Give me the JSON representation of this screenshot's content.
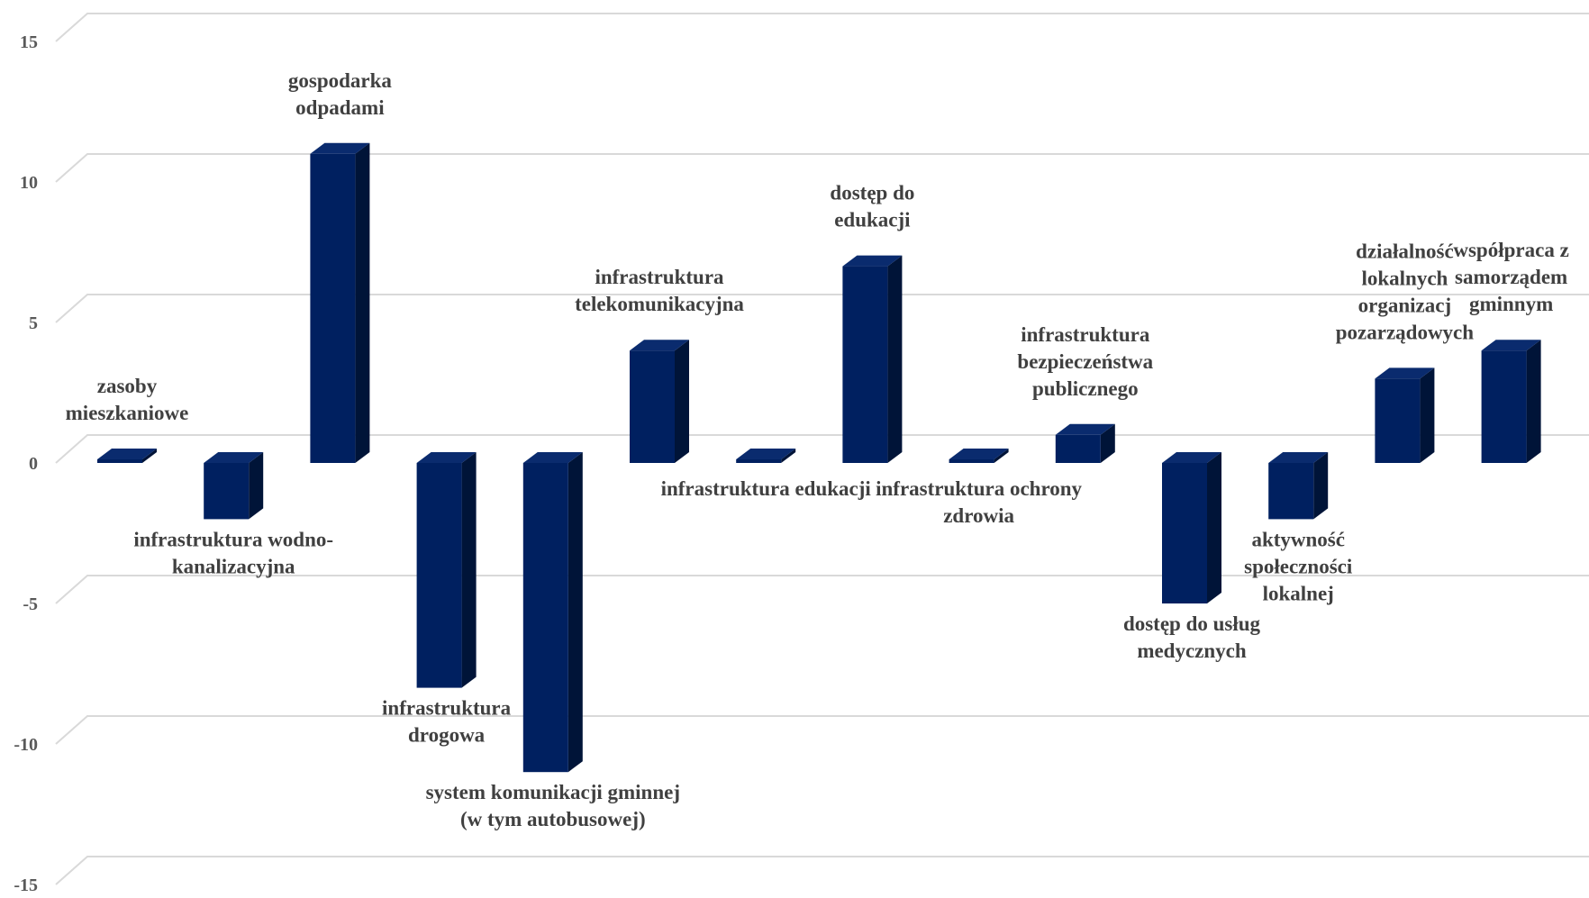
{
  "chart_data": {
    "type": "bar",
    "title": "",
    "xlabel": "",
    "ylabel": "",
    "ylim": [
      -15,
      15
    ],
    "yticks": [
      15,
      10,
      5,
      0,
      -5,
      -10,
      -15
    ],
    "grid": true,
    "bar_color": "#002060",
    "bar_side_color": "#001438",
    "bar_top_color": "#0a2b6e",
    "categories": [
      [
        "zasoby",
        "mieszkaniowe"
      ],
      [
        "infrastruktura wodno-",
        "kanalizacyjna"
      ],
      [
        "gospodarka",
        "odpadami"
      ],
      [
        "infrastruktura",
        "drogowa"
      ],
      [
        "system komunikacji gminnej",
        "(w tym autobusowej)"
      ],
      [
        "infrastruktura",
        "telekomunikacyjna"
      ],
      [
        "infrastruktura edukacji"
      ],
      [
        "dostęp do",
        "edukacji"
      ],
      [
        "infrastruktura ochrony",
        "zdrowia"
      ],
      [
        "infrastruktura",
        "bezpieczeństwa",
        "publicznego"
      ],
      [
        "dostęp do usług",
        "medycznych"
      ],
      [
        "aktywność",
        "społeczności",
        "lokalnej"
      ],
      [
        "działalność",
        "lokalnych",
        "organizacj",
        "pozarządowych"
      ],
      [
        "współpraca z",
        "samorządem",
        "gminnym"
      ]
    ],
    "values": [
      0,
      -2,
      11,
      -8,
      -11,
      4,
      0,
      7,
      0,
      1,
      -5,
      -2,
      3,
      4
    ]
  }
}
